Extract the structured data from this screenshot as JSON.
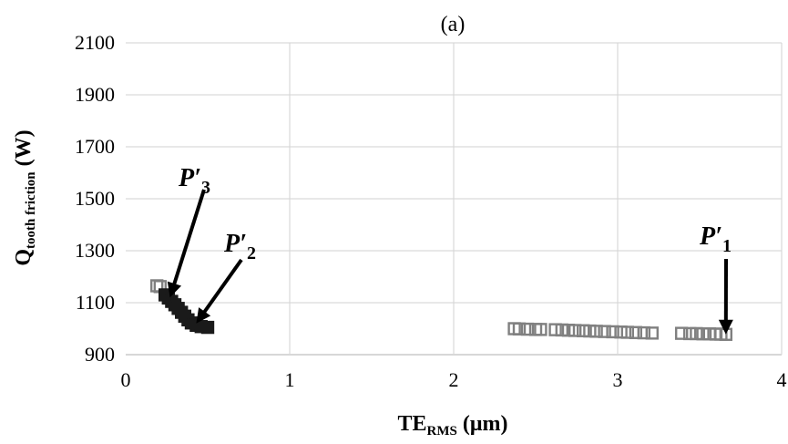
{
  "chart_data": {
    "type": "scatter",
    "title": "(a)",
    "xlabel": {
      "main": "TE",
      "sub": "RMS",
      "tail": " (μm)"
    },
    "ylabel": {
      "main": "Q",
      "sub": "tooth friction",
      "tail": " (W)"
    },
    "xlim": [
      0,
      4
    ],
    "ylim": [
      900,
      2100
    ],
    "x_ticks": [
      "0",
      "1",
      "2",
      "3",
      "4"
    ],
    "y_ticks": [
      "900",
      "1100",
      "1300",
      "1500",
      "1700",
      "1900",
      "2100"
    ],
    "grid": true,
    "series": [
      {
        "marker": "open-square",
        "color": "#808080",
        "points": [
          [
            0.19,
            1165
          ],
          [
            0.21,
            1162
          ],
          [
            2.37,
            1000
          ],
          [
            2.4,
            999
          ],
          [
            2.45,
            998
          ],
          [
            2.5,
            997
          ],
          [
            2.53,
            997
          ],
          [
            2.62,
            996
          ],
          [
            2.66,
            995
          ],
          [
            2.7,
            994
          ],
          [
            2.74,
            993
          ],
          [
            2.79,
            992
          ],
          [
            2.83,
            991
          ],
          [
            2.87,
            990
          ],
          [
            2.92,
            989
          ],
          [
            2.97,
            988
          ],
          [
            3.02,
            987
          ],
          [
            3.06,
            986
          ],
          [
            3.11,
            985
          ],
          [
            3.16,
            984
          ],
          [
            3.21,
            983
          ],
          [
            3.39,
            982
          ],
          [
            3.44,
            981
          ],
          [
            3.48,
            981
          ],
          [
            3.52,
            980
          ],
          [
            3.56,
            980
          ],
          [
            3.6,
            979
          ],
          [
            3.63,
            979
          ],
          [
            3.66,
            978
          ]
        ]
      },
      {
        "marker": "filled-square",
        "color": "#1a1a1a",
        "points": [
          [
            0.24,
            1130
          ],
          [
            0.26,
            1118
          ],
          [
            0.28,
            1105
          ],
          [
            0.3,
            1092
          ],
          [
            0.32,
            1078
          ],
          [
            0.34,
            1063
          ],
          [
            0.36,
            1048
          ],
          [
            0.38,
            1034
          ],
          [
            0.4,
            1022
          ],
          [
            0.43,
            1013
          ],
          [
            0.46,
            1008
          ],
          [
            0.5,
            1005
          ]
        ]
      }
    ],
    "annotations": [
      {
        "name": "P′",
        "index": "3",
        "arrow_to": [
          0.27,
          1120
        ]
      },
      {
        "name": "P′",
        "index": "2",
        "arrow_to": [
          0.43,
          1020
        ]
      },
      {
        "name": "P′",
        "index": "1",
        "arrow_to": [
          3.66,
          978
        ]
      }
    ]
  }
}
